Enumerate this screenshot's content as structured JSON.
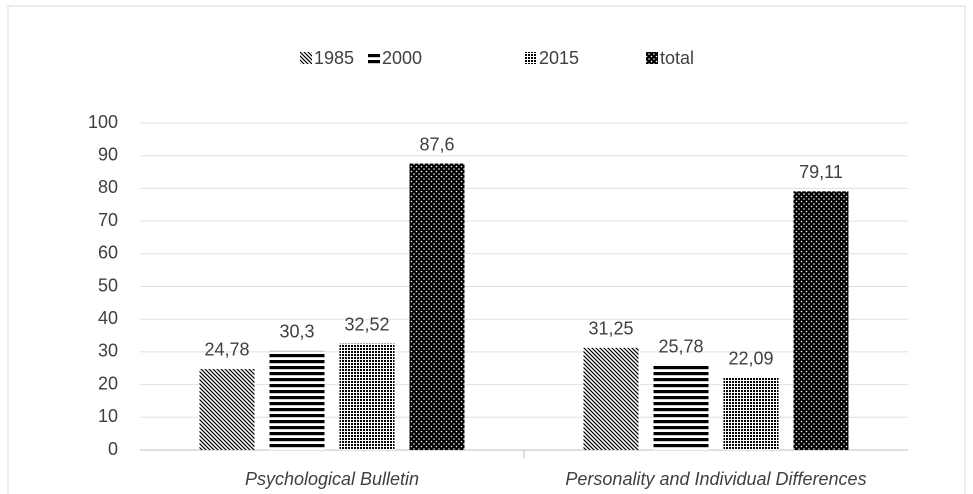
{
  "chart_data": {
    "type": "bar",
    "categories": [
      "Psychological Bulletin",
      "Personality and Individual Differences"
    ],
    "series": [
      {
        "name": "1985",
        "color": "#000000",
        "pattern": "diagonal",
        "values": [
          24.78,
          31.25
        ],
        "value_labels": [
          "24,78",
          "31,25"
        ]
      },
      {
        "name": "2000",
        "color": "#000000",
        "pattern": "horizontal",
        "values": [
          30.3,
          25.78
        ],
        "value_labels": [
          "30,3",
          "25,78"
        ]
      },
      {
        "name": "2015",
        "color": "#000000",
        "pattern": "crosshatch",
        "values": [
          32.52,
          22.09
        ],
        "value_labels": [
          "32,52",
          "22,09"
        ]
      },
      {
        "name": "total",
        "color": "#000000",
        "pattern": "dots",
        "values": [
          87.6,
          79.11
        ],
        "value_labels": [
          "87,6",
          "79,11"
        ]
      }
    ],
    "ylim": [
      0,
      100
    ],
    "yticks": [
      0,
      10,
      20,
      30,
      40,
      50,
      60,
      70,
      80,
      90,
      100
    ],
    "grid": true,
    "legend": "top"
  }
}
